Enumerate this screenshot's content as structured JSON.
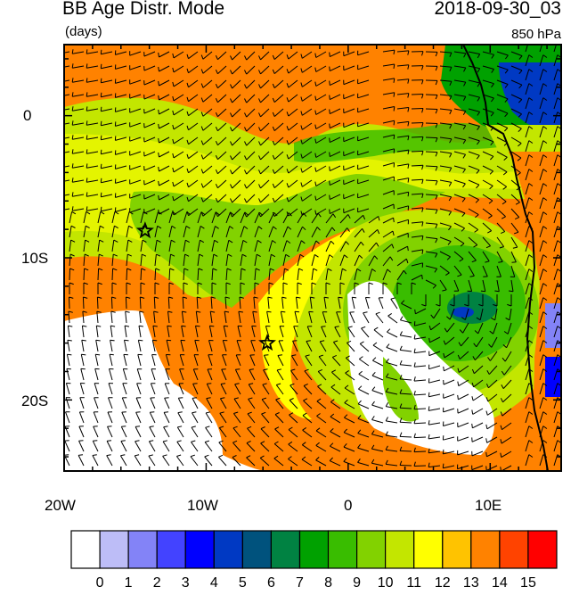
{
  "title": "BB Age Distr. Mode",
  "units": "(days)",
  "valid_time": "2018-09-30_03",
  "level": "850 hPa",
  "lat_labels": [
    "0",
    "10S",
    "20S"
  ],
  "lon_labels": [
    "20W",
    "10W",
    "0",
    "10E"
  ],
  "colorbar": {
    "labels": [
      "0",
      "1",
      "2",
      "3",
      "4",
      "5",
      "6",
      "7",
      "8",
      "9",
      "10",
      "11",
      "12",
      "13",
      "14",
      "15"
    ],
    "colors": [
      "#ffffff",
      "#bdbdf7",
      "#8383f7",
      "#4343ff",
      "#0000ff",
      "#0039c3",
      "#00527d",
      "#008242",
      "#00a100",
      "#39bd00",
      "#82d200",
      "#c3e600",
      "#ffff00",
      "#ffc300",
      "#ff8200",
      "#ff4300",
      "#ff0000"
    ]
  },
  "markers": [
    {
      "name": "star-west",
      "lon": -14.3,
      "lat": -8.1
    },
    {
      "name": "star-central",
      "lon": -5.7,
      "lat": -16.0
    }
  ]
}
